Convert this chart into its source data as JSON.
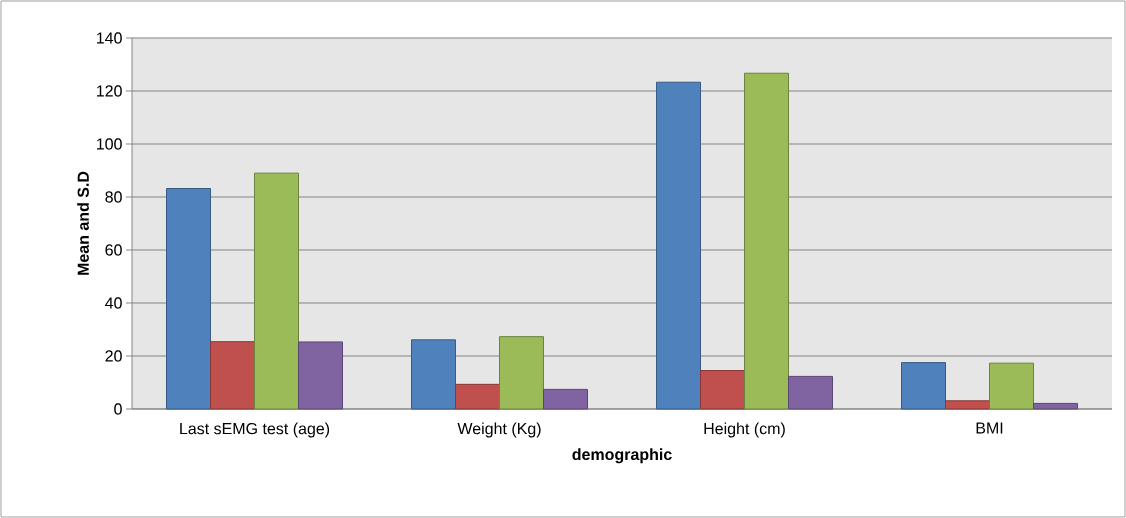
{
  "chart_data": {
    "type": "bar",
    "xlabel": "demographic",
    "ylabel": "Mean and S.D",
    "categories": [
      "Last sEMG test (age)",
      "Weight (Kg)",
      "Height (cm)",
      "BMI"
    ],
    "series": [
      {
        "color": "#4f81bd",
        "values": [
          83.2,
          26.1,
          123.3,
          17.5
        ]
      },
      {
        "color": "#c0504d",
        "values": [
          25.4,
          9.3,
          14.5,
          3.1
        ]
      },
      {
        "color": "#9bbb59",
        "values": [
          89.0,
          27.3,
          126.7,
          17.3
        ]
      },
      {
        "color": "#8064a2",
        "values": [
          25.3,
          7.4,
          12.3,
          2.1
        ]
      }
    ],
    "ylim": [
      0,
      140
    ],
    "yticks": [
      0,
      20,
      40,
      60,
      80,
      100,
      120,
      140
    ],
    "grid": "y"
  }
}
